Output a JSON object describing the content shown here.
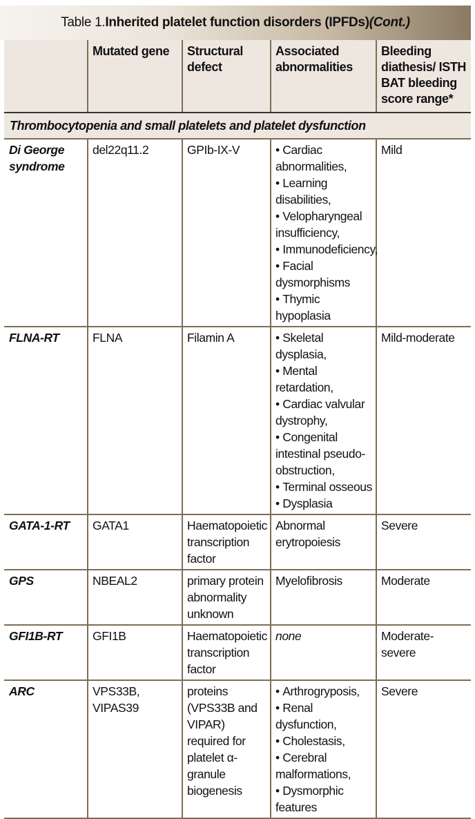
{
  "title": {
    "prefix": "Table 1. ",
    "bold": "Inherited platelet function disorders (IPFDs) ",
    "italic": "(Cont.)"
  },
  "headers": [
    "",
    "Mutated gene",
    "Structural defect",
    "Associated abnormalities",
    "Bleeding diathesis/ ISTH BAT bleeding score range*"
  ],
  "group": "Thrombocytopenia and small platelets and platelet dysfunction",
  "rows": [
    {
      "name": "Di George syndrome",
      "gene": "del22q11.2",
      "defect": "GPIb-IX-V",
      "abnormalities": [
        "Cardiac abnormalities,",
        "Learning disabilities,",
        "Velopharyngeal insufficiency,",
        "Immunodeficiency,",
        "Facial dysmorphisms",
        "Thymic hypoplasia"
      ],
      "bleeding": "Mild"
    },
    {
      "name": "FLNA-RT",
      "gene": "FLNA",
      "defect": "Filamin A",
      "abnormalities": [
        "Skeletal dysplasia,",
        "Mental retardation,",
        "Cardiac valvular dystrophy,",
        "Congenital intestinal pseudo-obstruction,",
        "Terminal osseous",
        "Dysplasia"
      ],
      "bleeding": "Mild-moderate"
    },
    {
      "name": "GATA-1-RT",
      "gene": "GATA1",
      "defect": "Haematopoietic transcription factor",
      "abnormalities_text": "Abnormal erytropoiesis",
      "bleeding": "Severe"
    },
    {
      "name": "GPS",
      "gene": "NBEAL2",
      "defect": "primary protein abnormality unknown",
      "abnormalities_text": "Myelofibrosis",
      "bleeding": "Moderate"
    },
    {
      "name": "GFI1B-RT",
      "gene": "GFI1B",
      "defect": "Haematopoietic transcription factor",
      "abnormalities_text": "none",
      "bleeding": "Moderate-severe"
    },
    {
      "name": "ARC",
      "gene": "VPS33B, VIPAS39",
      "defect": "proteins (VPS33B and VIPAR) required for platelet α-granule biogenesis",
      "abnormalities": [
        "Arthrogryposis,",
        "Renal dysfunction,",
        "Cholestasis,",
        "Cerebral malformations,",
        "Dysmorphic features"
      ],
      "bleeding": "Severe"
    }
  ]
}
